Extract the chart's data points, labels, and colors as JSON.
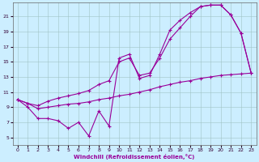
{
  "xlabel": "Windchill (Refroidissement éolien,°C)",
  "bg_color": "#cceeff",
  "line_color": "#990099",
  "xlim": [
    -0.5,
    23.5
  ],
  "ylim": [
    4.0,
    22.8
  ],
  "xticks": [
    0,
    1,
    2,
    3,
    4,
    5,
    6,
    7,
    8,
    9,
    10,
    11,
    12,
    13,
    14,
    15,
    16,
    17,
    18,
    19,
    20,
    21,
    22,
    23
  ],
  "yticks": [
    5,
    7,
    9,
    11,
    13,
    15,
    17,
    19,
    21
  ],
  "curve1_x": [
    0,
    1,
    2,
    3,
    4,
    5,
    6,
    7,
    8,
    9,
    10,
    11,
    12,
    13,
    14,
    15,
    16,
    17,
    18,
    19,
    20,
    21,
    22,
    23
  ],
  "curve1_y": [
    10.0,
    9.0,
    7.5,
    7.5,
    7.2,
    6.2,
    7.0,
    5.2,
    8.5,
    6.5,
    15.5,
    16.0,
    12.8,
    13.2,
    16.0,
    19.2,
    20.5,
    21.5,
    22.3,
    22.5,
    22.5,
    21.2,
    18.8,
    13.5
  ],
  "curve2_x": [
    0,
    1,
    2,
    3,
    4,
    5,
    6,
    7,
    8,
    9,
    10,
    11,
    12,
    13,
    14,
    15,
    16,
    17,
    18,
    19,
    20,
    21,
    22,
    23
  ],
  "curve2_y": [
    10.0,
    9.5,
    9.2,
    9.8,
    10.2,
    10.5,
    10.8,
    11.2,
    12.0,
    12.5,
    15.0,
    15.5,
    13.2,
    13.5,
    15.5,
    18.0,
    19.5,
    21.0,
    22.3,
    22.5,
    22.5,
    21.2,
    18.8,
    13.5
  ],
  "curve3_x": [
    0,
    1,
    2,
    3,
    4,
    5,
    6,
    7,
    8,
    9,
    10,
    11,
    12,
    13,
    14,
    15,
    16,
    17,
    18,
    19,
    20,
    21,
    22,
    23
  ],
  "curve3_y": [
    10.0,
    9.5,
    8.8,
    9.0,
    9.2,
    9.4,
    9.5,
    9.7,
    10.0,
    10.2,
    10.5,
    10.7,
    11.0,
    11.3,
    11.7,
    12.0,
    12.3,
    12.5,
    12.8,
    13.0,
    13.2,
    13.3,
    13.4,
    13.5
  ]
}
